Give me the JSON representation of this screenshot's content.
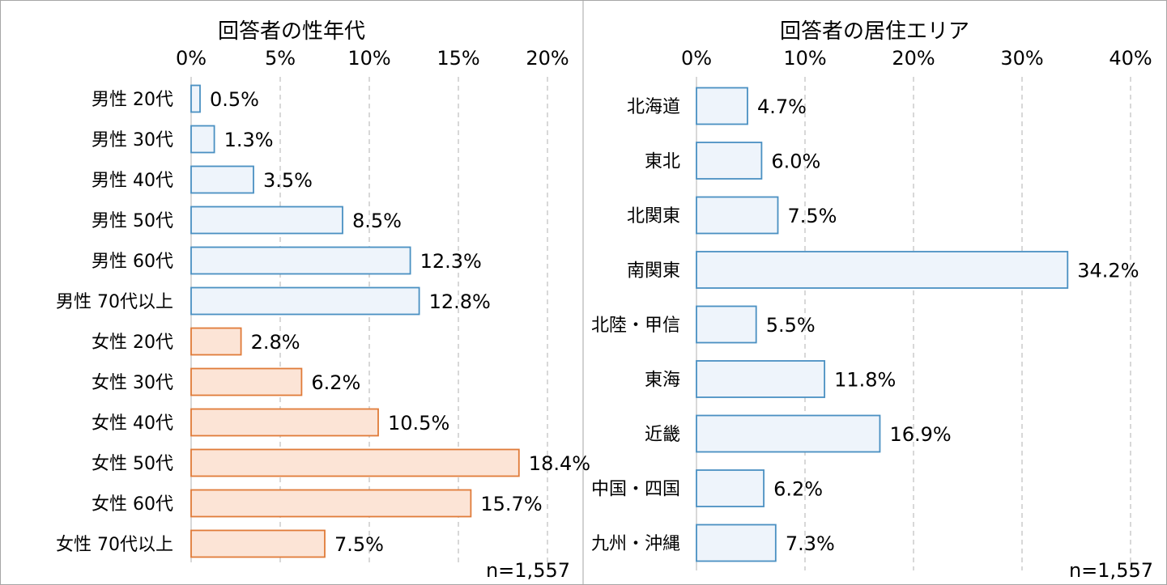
{
  "chart_data": [
    {
      "type": "bar",
      "orientation": "horizontal",
      "title": "回答者の性年代",
      "categories": [
        "男性 20代",
        "男性 30代",
        "男性 40代",
        "男性 50代",
        "男性 60代",
        "男性 70代以上",
        "女性 20代",
        "女性 30代",
        "女性 40代",
        "女性 50代",
        "女性 60代",
        "女性 70代以上"
      ],
      "values": [
        0.5,
        1.3,
        3.5,
        8.5,
        12.3,
        12.8,
        2.8,
        6.2,
        10.5,
        18.4,
        15.7,
        7.5
      ],
      "value_labels": [
        "0.5%",
        "1.3%",
        "3.5%",
        "8.5%",
        "12.3%",
        "12.8%",
        "2.8%",
        "6.2%",
        "10.5%",
        "18.4%",
        "15.7%",
        "7.5%"
      ],
      "xlim": [
        0,
        20
      ],
      "ticks": [
        "0%",
        "5%",
        "10%",
        "15%",
        "20%"
      ],
      "grid": true,
      "note": "n=1,557",
      "colors": {
        "male_fill": "#eef4fb",
        "male_stroke": "#4a90c2",
        "female_fill": "#fce4d6",
        "female_stroke": "#e07b39"
      }
    },
    {
      "type": "bar",
      "orientation": "horizontal",
      "title": "回答者の居住エリア",
      "categories": [
        "北海道",
        "東北",
        "北関東",
        "南関東",
        "北陸・甲信",
        "東海",
        "近畿",
        "中国・四国",
        "九州・沖縄"
      ],
      "values": [
        4.7,
        6.0,
        7.5,
        34.2,
        5.5,
        11.8,
        16.9,
        6.2,
        7.3
      ],
      "value_labels": [
        "4.7%",
        "6.0%",
        "7.5%",
        "34.2%",
        "5.5%",
        "11.8%",
        "16.9%",
        "6.2%",
        "7.3%"
      ],
      "xlim": [
        0,
        40
      ],
      "ticks": [
        "0%",
        "10%",
        "20%",
        "30%",
        "40%"
      ],
      "grid": true,
      "note": "n=1,557",
      "colors": {
        "fill": "#eef4fb",
        "stroke": "#4a90c2"
      }
    }
  ]
}
